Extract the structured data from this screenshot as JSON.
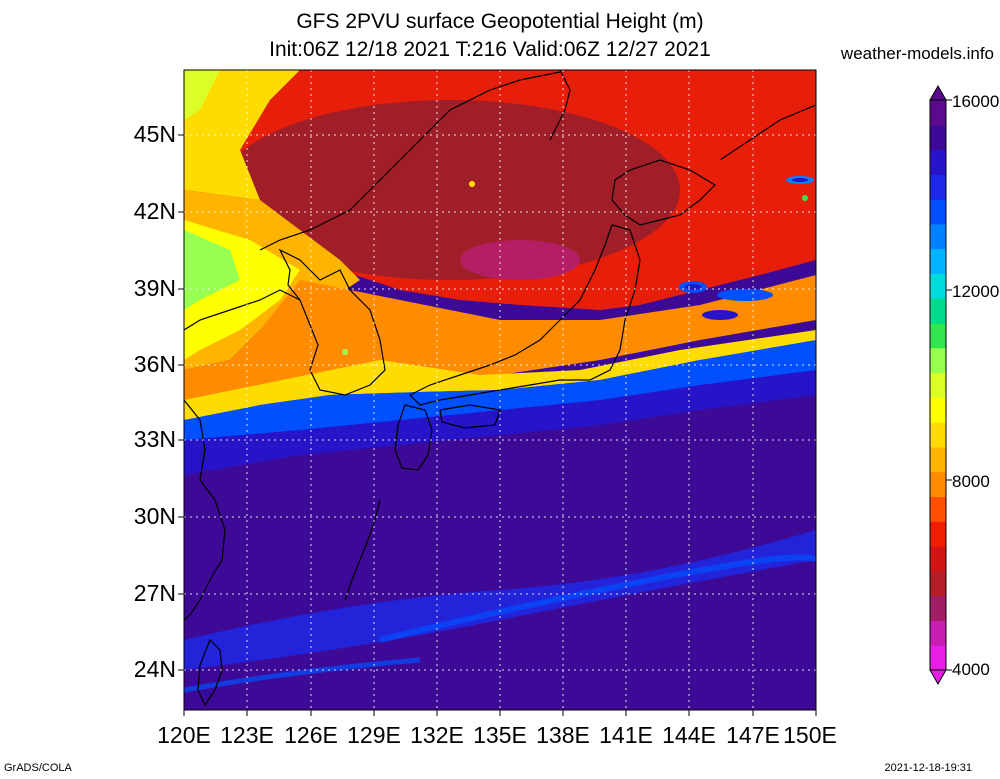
{
  "header": {
    "title_line1": "GFS 2PVU surface Geopotential Height (m)",
    "title_line2": "Init:06Z 12/18 2021 T:216 Valid:06Z 12/27 2021",
    "site": "weather-models.info"
  },
  "footer": {
    "left": "GrADS/COLA",
    "right": "2021-12-18-19:31"
  },
  "map": {
    "lon_labels": [
      "120E",
      "123E",
      "126E",
      "129E",
      "132E",
      "135E",
      "138E",
      "141E",
      "144E",
      "147E",
      "150E"
    ],
    "lat_labels": [
      "45N",
      "42N",
      "39N",
      "36N",
      "33N",
      "30N",
      "27N",
      "24N"
    ]
  },
  "colorbar": {
    "labels": [
      "16000",
      "12000",
      "8000",
      "4000"
    ],
    "colors": [
      "#e61ee6",
      "#c81eb4",
      "#a01e64",
      "#b41e28",
      "#d21414",
      "#f01e00",
      "#ff5000",
      "#ff8c00",
      "#ffb400",
      "#ffdc00",
      "#ffff00",
      "#dcff28",
      "#96ff50",
      "#32e650",
      "#00dc8c",
      "#00dcdc",
      "#00b4ff",
      "#0082ff",
      "#0050ff",
      "#1e28e6",
      "#2814c8",
      "#3c0a96",
      "#5a0a8c"
    ]
  }
}
